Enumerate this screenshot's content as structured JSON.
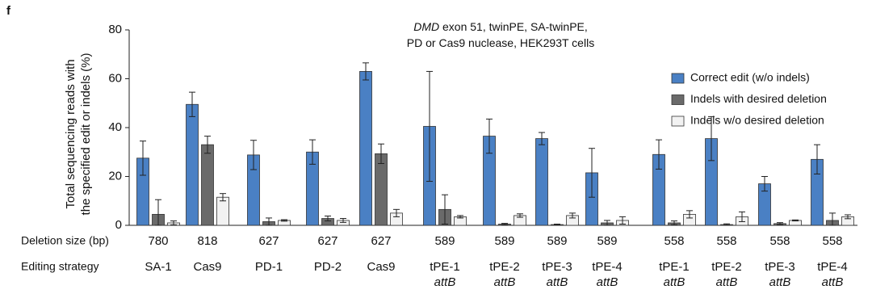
{
  "chart_data": {
    "type": "bar",
    "panel_label": "f",
    "title_lines": [
      [
        "DMD",
        " exon 51, twinPE, SA-twinPE,"
      ],
      [
        "PD or Cas9 nuclease, HEK293T cells"
      ]
    ],
    "y_label": [
      "Total sequencing reads with",
      "the specified edit or indels (%)"
    ],
    "row_labels": [
      "Deletion size (bp)",
      "Editing strategy"
    ],
    "deletion_size": [
      780,
      818,
      627,
      627,
      627,
      589,
      589,
      589,
      589,
      558,
      558,
      558,
      558
    ],
    "categories": [
      "SA-1",
      "Cas9",
      "PD-1",
      "PD-2",
      "Cas9",
      "tPE-1",
      "tPE-2",
      "tPE-3",
      "tPE-4",
      "tPE-1",
      "tPE-2",
      "tPE-3",
      "tPE-4"
    ],
    "category_sub": [
      null,
      null,
      null,
      null,
      null,
      "attB",
      "attB",
      "attB",
      "attB",
      "attB",
      "attB",
      "attB",
      "attB"
    ],
    "series": [
      {
        "name": "Correct edit (w/o indels)",
        "color": "#4a80c4",
        "values": [
          27.5,
          49.5,
          28.8,
          30,
          63,
          40.5,
          36.5,
          35.5,
          21.5,
          29,
          35.5,
          17,
          27
        ],
        "errors": [
          7,
          5,
          6,
          5,
          3.5,
          22.5,
          7,
          2.5,
          10,
          6,
          9,
          3,
          6
        ]
      },
      {
        "name": "Indels with desired deletion",
        "color": "#6a6a6a",
        "values": [
          4.5,
          33,
          1.5,
          2.8,
          29.3,
          6.5,
          0.5,
          0.3,
          1,
          1,
          0.3,
          0.7,
          2
        ],
        "errors": [
          6,
          3.5,
          1.5,
          1,
          4,
          6,
          0.3,
          0.2,
          1,
          0.8,
          0.3,
          0.4,
          3
        ]
      },
      {
        "name": "Indels w/o desired deletion",
        "color": "#f2f2f2",
        "values": [
          1,
          11.5,
          2,
          2,
          5,
          3.5,
          4,
          4,
          2,
          4.5,
          3.5,
          2,
          3.5
        ],
        "errors": [
          0.8,
          1.5,
          0.3,
          0.8,
          1.5,
          0.5,
          0.7,
          1,
          1.5,
          1.5,
          2,
          0.2,
          0.8
        ]
      }
    ],
    "ylim": [
      0,
      80
    ],
    "yticks": [
      0,
      20,
      40,
      60,
      80
    ]
  }
}
